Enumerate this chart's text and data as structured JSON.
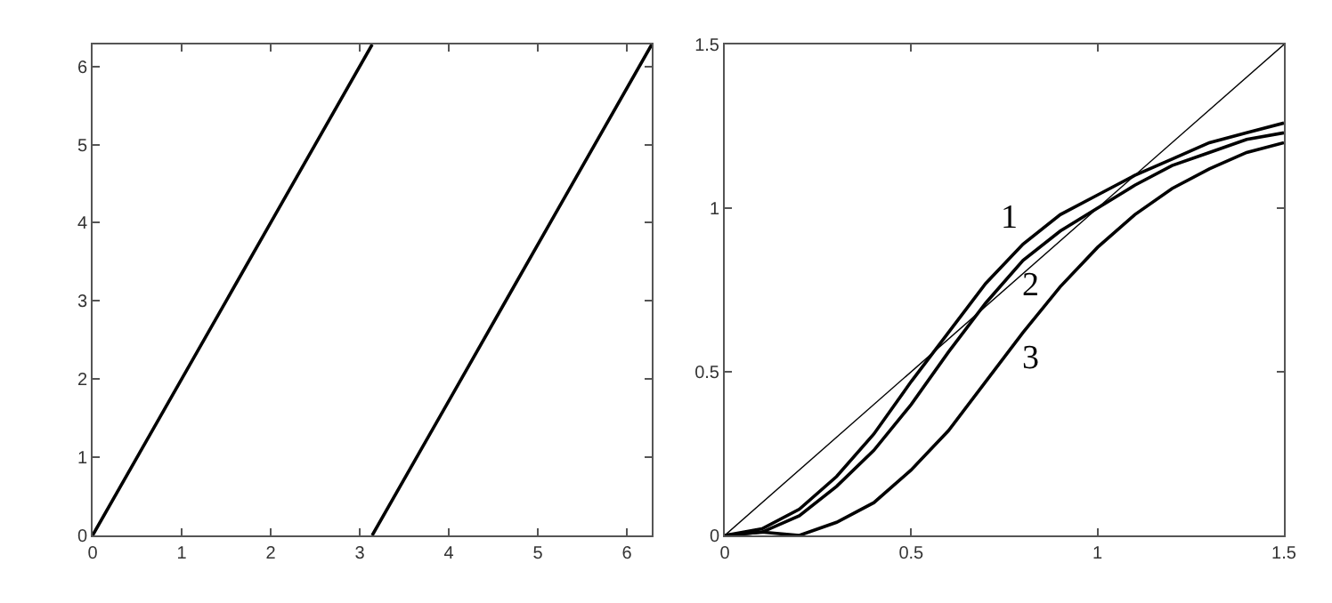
{
  "chart_data": [
    {
      "type": "line",
      "xlim": [
        0,
        6.28
      ],
      "ylim": [
        0,
        6.28
      ],
      "xticks": [
        0,
        1,
        2,
        3,
        4,
        5,
        6
      ],
      "yticks": [
        0,
        1,
        2,
        3,
        4,
        5,
        6
      ],
      "grid": false,
      "legend": false,
      "series": [
        {
          "color": "#000000",
          "x": [
            0,
            1.57,
            3.14
          ],
          "values": [
            0,
            3.14,
            6.28
          ]
        },
        {
          "color": "#000000",
          "x": [
            3.14,
            4.71,
            6.28
          ],
          "values": [
            0,
            3.14,
            6.28
          ]
        }
      ]
    },
    {
      "type": "line",
      "xlim": [
        0,
        1.5
      ],
      "ylim": [
        0,
        1.5
      ],
      "xticks": [
        0,
        0.5,
        1,
        1.5
      ],
      "yticks": [
        0,
        0.5,
        1,
        1.5
      ],
      "grid": false,
      "legend": false,
      "series": [
        {
          "color": "#000000",
          "x": [
            0,
            1.5
          ],
          "values": [
            0,
            1.5
          ]
        },
        {
          "name": "1",
          "color": "#000000",
          "x": [
            0,
            0.1,
            0.2,
            0.3,
            0.4,
            0.5,
            0.6,
            0.7,
            0.8,
            0.9,
            1.0,
            1.1,
            1.2,
            1.3,
            1.4,
            1.5
          ],
          "values": [
            0,
            0.02,
            0.08,
            0.18,
            0.31,
            0.47,
            0.62,
            0.77,
            0.89,
            0.98,
            1.04,
            1.1,
            1.15,
            1.2,
            1.23,
            1.26
          ]
        },
        {
          "name": "2",
          "color": "#000000",
          "x": [
            0,
            0.1,
            0.2,
            0.3,
            0.4,
            0.5,
            0.6,
            0.7,
            0.8,
            0.9,
            1.0,
            1.1,
            1.2,
            1.3,
            1.4,
            1.5
          ],
          "values": [
            0,
            0.01,
            0.06,
            0.15,
            0.26,
            0.4,
            0.56,
            0.71,
            0.84,
            0.93,
            1.0,
            1.07,
            1.13,
            1.17,
            1.21,
            1.23
          ]
        },
        {
          "name": "3",
          "color": "#000000",
          "x": [
            0,
            0.1,
            0.2,
            0.3,
            0.4,
            0.5,
            0.6,
            0.7,
            0.8,
            0.9,
            1.0,
            1.1,
            1.2,
            1.3,
            1.4,
            1.5
          ],
          "values": [
            0,
            0.01,
            0,
            0.04,
            0.1,
            0.2,
            0.32,
            0.47,
            0.62,
            0.76,
            0.88,
            0.98,
            1.06,
            1.12,
            1.17,
            1.2
          ]
        }
      ]
    }
  ]
}
